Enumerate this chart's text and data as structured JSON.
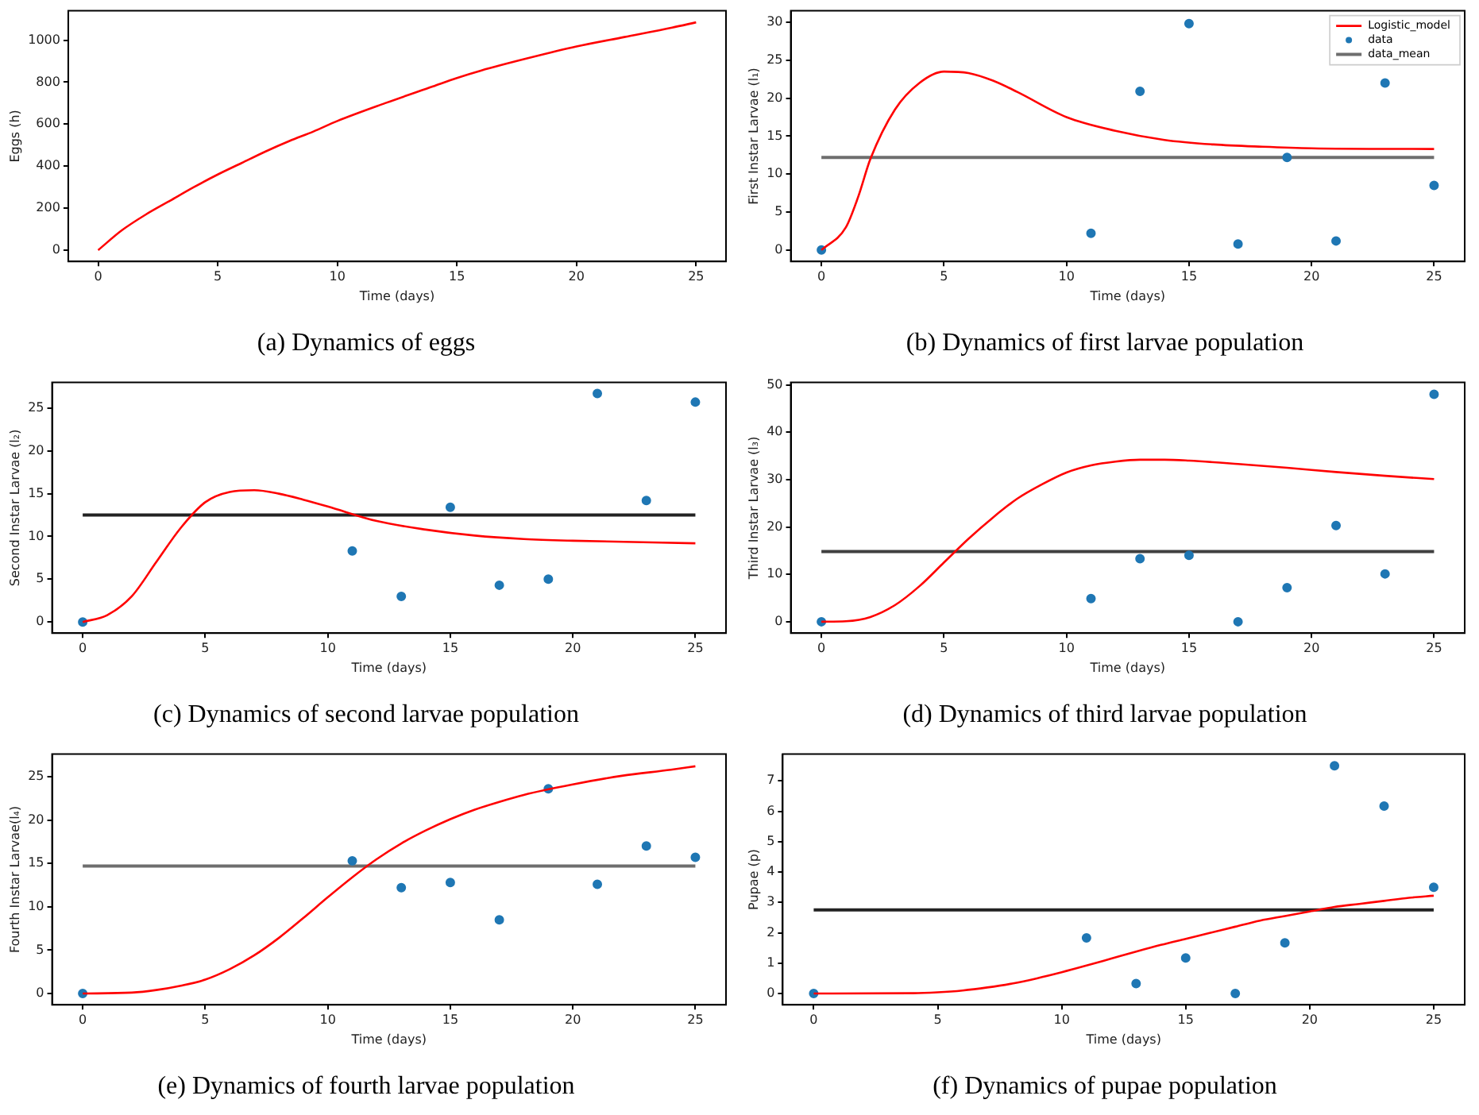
{
  "chart_data": [
    {
      "type": "line",
      "title": "(a) Dynamics of eggs",
      "xlabel": "Time (days)",
      "ylabel": "Eggs (h)",
      "xlim": [
        -1.25,
        26.25
      ],
      "xticks": [
        0,
        5,
        10,
        15,
        20,
        25
      ],
      "ylim": [
        -54,
        1140
      ],
      "yticks": [
        0,
        200,
        400,
        600,
        800,
        1000
      ],
      "grid": false,
      "legend": false,
      "series": [
        {
          "type": "line",
          "color": "#ff0000",
          "x": [
            0,
            1,
            2,
            3,
            4,
            5,
            6,
            7,
            8,
            9,
            10,
            12,
            14,
            15,
            16,
            18,
            20,
            22,
            24,
            25
          ],
          "values": [
            0,
            95,
            170,
            235,
            300,
            360,
            415,
            470,
            520,
            565,
            615,
            700,
            780,
            820,
            855,
            915,
            970,
            1015,
            1060,
            1085
          ]
        }
      ]
    },
    {
      "type": "line",
      "title": "(b) Dynamics of first larvae population",
      "xlabel": "Time (days)",
      "ylabel": "First Instar Larvae (l₁)",
      "xlim": [
        -1.25,
        26.25
      ],
      "xticks": [
        0,
        5,
        10,
        15,
        20,
        25
      ],
      "ylim": [
        -1.5,
        31.5
      ],
      "yticks": [
        0,
        5,
        10,
        15,
        20,
        25,
        30
      ],
      "grid": false,
      "legend": "top right",
      "series": [
        {
          "name": "Logistic_model",
          "type": "line",
          "color": "#ff0000",
          "x": [
            0,
            1,
            1.5,
            2,
            3,
            4,
            5,
            6,
            7,
            8,
            10,
            12,
            14,
            16,
            18,
            20,
            25
          ],
          "values": [
            0,
            3,
            7,
            12,
            18.5,
            22,
            23.5,
            23.3,
            22.3,
            20.8,
            17.5,
            15.7,
            14.5,
            13.9,
            13.6,
            13.4,
            13.3
          ]
        },
        {
          "name": "data",
          "type": "scatter",
          "marker": "circle",
          "color": "#1f77b4",
          "x": [
            0,
            11,
            13,
            15,
            17,
            19,
            21,
            23,
            25
          ],
          "values": [
            0,
            2.2,
            20.9,
            29.8,
            0.8,
            12.2,
            1.2,
            22,
            8.5
          ]
        },
        {
          "name": "data_mean",
          "type": "line",
          "color": "#6e6e6e",
          "x": [
            0,
            25
          ],
          "values": [
            12.2,
            12.2
          ]
        }
      ]
    },
    {
      "type": "line",
      "title": "(c) Dynamics of second larvae population",
      "xlabel": "Time (days)",
      "ylabel": "Second Instar Larvae (l₂)",
      "xlim": [
        -1.25,
        26.25
      ],
      "xticks": [
        0,
        5,
        10,
        15,
        20,
        25
      ],
      "ylim": [
        -1.3,
        28
      ],
      "yticks": [
        0,
        5,
        10,
        15,
        20,
        25
      ],
      "grid": false,
      "legend": false,
      "series": [
        {
          "type": "line",
          "color": "#ff0000",
          "x": [
            0,
            1,
            2,
            3,
            4,
            5,
            6,
            7,
            8,
            9,
            10,
            12,
            14,
            16,
            18,
            20,
            25
          ],
          "values": [
            0,
            0.8,
            3,
            7,
            11,
            14,
            15.2,
            15.4,
            15,
            14.3,
            13.5,
            11.8,
            10.8,
            10.1,
            9.7,
            9.5,
            9.2
          ]
        },
        {
          "type": "scatter",
          "marker": "circle",
          "color": "#1f77b4",
          "x": [
            0,
            11,
            13,
            15,
            17,
            19,
            21,
            23,
            25
          ],
          "values": [
            0,
            8.3,
            3,
            13.4,
            4.3,
            5,
            26.7,
            14.2,
            25.7
          ]
        },
        {
          "type": "line",
          "color": "#222222",
          "x": [
            0,
            25
          ],
          "values": [
            12.5,
            12.5
          ]
        }
      ]
    },
    {
      "type": "line",
      "title": "(d) Dynamics of third larvae population",
      "xlabel": "Time (days)",
      "ylabel": "Third Instar Larvae (l₃)",
      "xlim": [
        -1.25,
        26.25
      ],
      "xticks": [
        0,
        5,
        10,
        15,
        20,
        25
      ],
      "ylim": [
        -2.4,
        50.5
      ],
      "yticks": [
        0,
        10,
        20,
        30,
        40,
        50
      ],
      "grid": false,
      "legend": false,
      "series": [
        {
          "type": "line",
          "color": "#ff0000",
          "x": [
            0,
            1,
            2,
            3,
            4,
            5,
            6,
            7,
            8,
            9,
            10,
            11,
            12,
            13,
            14,
            15,
            17,
            19,
            21,
            23,
            25
          ],
          "values": [
            0,
            0.1,
            1,
            3.5,
            7.5,
            12.5,
            17.5,
            22,
            26,
            29,
            31.5,
            33,
            33.8,
            34.2,
            34.2,
            34,
            33.3,
            32.5,
            31.6,
            30.8,
            30.1
          ]
        },
        {
          "type": "scatter",
          "marker": "circle",
          "color": "#1f77b4",
          "x": [
            0,
            11,
            13,
            15,
            17,
            19,
            21,
            23,
            25
          ],
          "values": [
            0,
            4.9,
            13.3,
            14,
            0,
            7.2,
            20.3,
            10.1,
            48
          ]
        },
        {
          "type": "line",
          "color": "#404040",
          "x": [
            0,
            25
          ],
          "values": [
            14.8,
            14.8
          ]
        }
      ]
    },
    {
      "type": "line",
      "title": "(e) Dynamics of fourth larvae population",
      "xlabel": "Time (days)",
      "ylabel": "Fourth Instar Larvae(l₄)",
      "xlim": [
        -1.25,
        26.25
      ],
      "xticks": [
        0,
        5,
        10,
        15,
        20,
        25
      ],
      "ylim": [
        -1.3,
        27.6
      ],
      "yticks": [
        0,
        5,
        10,
        15,
        20,
        25
      ],
      "grid": false,
      "legend": false,
      "series": [
        {
          "type": "line",
          "color": "#ff0000",
          "x": [
            0,
            2,
            3,
            4,
            5,
            6,
            7,
            8,
            9,
            10,
            11,
            12,
            13,
            14,
            15,
            16,
            17,
            18,
            20,
            22,
            24,
            25
          ],
          "values": [
            0,
            0.1,
            0.4,
            0.9,
            1.6,
            2.8,
            4.4,
            6.4,
            8.7,
            11.1,
            13.4,
            15.5,
            17.3,
            18.8,
            20.1,
            21.2,
            22.1,
            22.9,
            24.1,
            25.1,
            25.8,
            26.2
          ]
        },
        {
          "type": "scatter",
          "marker": "circle",
          "color": "#1f77b4",
          "x": [
            0,
            11,
            13,
            15,
            17,
            19,
            21,
            23,
            25
          ],
          "values": [
            0,
            15.3,
            12.2,
            12.8,
            8.5,
            23.6,
            12.6,
            17,
            15.7
          ]
        },
        {
          "type": "line",
          "color": "#6e6e6e",
          "x": [
            0,
            25
          ],
          "values": [
            14.7,
            14.7
          ]
        }
      ]
    },
    {
      "type": "line",
      "title": "(f) Dynamics of pupae population",
      "xlabel": "Time (days)",
      "ylabel": "Pupae (p)",
      "xlim": [
        -1.25,
        26.25
      ],
      "xticks": [
        0,
        5,
        10,
        15,
        20,
        25
      ],
      "ylim": [
        -0.37,
        7.88
      ],
      "yticks": [
        0,
        1,
        2,
        3,
        4,
        5,
        6,
        7
      ],
      "grid": false,
      "legend": false,
      "series": [
        {
          "type": "line",
          "color": "#ff0000",
          "x": [
            0,
            4,
            5,
            6,
            7,
            8,
            9,
            10,
            11,
            12,
            13,
            14,
            15,
            16,
            17,
            18,
            19,
            20,
            21,
            22,
            23,
            24,
            25
          ],
          "values": [
            0,
            0.01,
            0.04,
            0.1,
            0.2,
            0.33,
            0.5,
            0.7,
            0.92,
            1.15,
            1.38,
            1.6,
            1.8,
            2,
            2.2,
            2.4,
            2.55,
            2.7,
            2.85,
            2.95,
            3.05,
            3.15,
            3.22
          ]
        },
        {
          "type": "scatter",
          "marker": "circle",
          "color": "#1f77b4",
          "x": [
            0,
            11,
            13,
            15,
            17,
            19,
            21,
            23,
            25
          ],
          "values": [
            0,
            1.83,
            0.33,
            1.17,
            0,
            1.67,
            7.5,
            6.17,
            3.5
          ]
        },
        {
          "type": "line",
          "color": "#222222",
          "x": [
            0,
            25
          ],
          "values": [
            2.75,
            2.75
          ]
        }
      ]
    }
  ]
}
